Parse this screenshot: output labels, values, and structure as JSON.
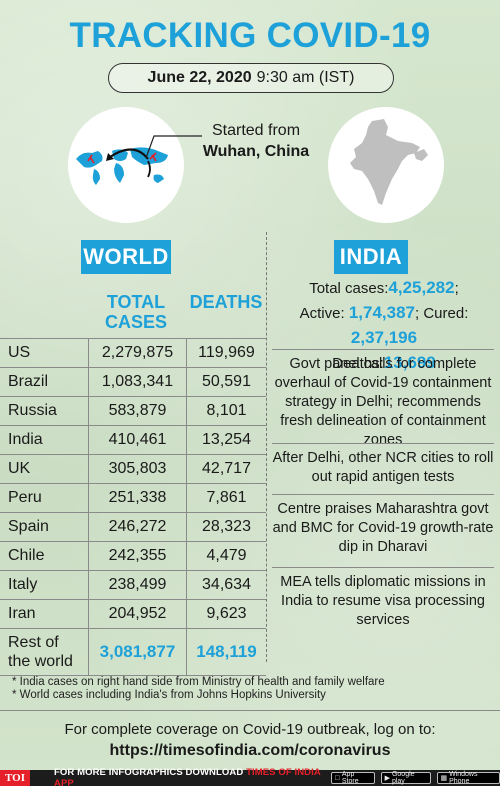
{
  "title": "TRACKING COVID-19",
  "date": {
    "day": "June 22, 2020",
    "time": "9:30 am (IST)"
  },
  "origin": {
    "line1": "Started from",
    "city": "Wuhan, China"
  },
  "world": {
    "label": "WORLD",
    "columns": {
      "cases": "TOTAL CASES",
      "deaths": "DEATHS"
    },
    "rows": [
      {
        "country": "US",
        "cases": "2,279,875",
        "deaths": "119,969"
      },
      {
        "country": "Brazil",
        "cases": "1,083,341",
        "deaths": "50,591"
      },
      {
        "country": "Russia",
        "cases": "583,879",
        "deaths": "8,101"
      },
      {
        "country": "India",
        "cases": "410,461",
        "deaths": "13,254"
      },
      {
        "country": "UK",
        "cases": "305,803",
        "deaths": "42,717"
      },
      {
        "country": "Peru",
        "cases": "251,338",
        "deaths": "7,861"
      },
      {
        "country": "Spain",
        "cases": "246,272",
        "deaths": "28,323"
      },
      {
        "country": "Chile",
        "cases": "242,355",
        "deaths": "4,479"
      },
      {
        "country": "Italy",
        "cases": "238,499",
        "deaths": "34,634"
      },
      {
        "country": "Iran",
        "cases": "204,952",
        "deaths": "9,623"
      }
    ],
    "rest": {
      "country_line1": "Rest of",
      "country_line2": "the world",
      "cases": "3,081,877",
      "deaths": "148,119"
    }
  },
  "india": {
    "label": "INDIA",
    "total_label": "Total cases:",
    "total": "4,25,282",
    "active_label": "Active:",
    "active": "1,74,387",
    "cured_label": "; Cured:",
    "cured": "2,37,196",
    "deaths_label": "Deaths:",
    "deaths": "13,699",
    "news": [
      "Govt panel calls for complete overhaul of Covid-19 containment strategy in Delhi; recommends fresh delineation of containment zones",
      "After Delhi, other NCR cities to roll out rapid antigen tests",
      "Centre praises Maharashtra govt and BMC for Covid-19 growth-rate dip in Dharavi",
      "MEA tells diplomatic missions in India to resume visa processing services"
    ]
  },
  "footnotes": [
    "* India cases on right hand side from Ministry of health and family welfare",
    "* World cases including India's from Johns Hopkins University"
  ],
  "coverage": {
    "text": "For complete coverage on Covid-19 outbreak, log on to:",
    "url": "https://timesofindia.com/coronavirus"
  },
  "bottom_bar": {
    "logo": "TOI",
    "text": "FOR MORE  INFOGRAPHICS DOWNLOAD",
    "app": "TIMES OF INDIA  APP",
    "stores": [
      "App Store",
      "Google play",
      "Windows Phone"
    ]
  },
  "colors": {
    "accent": "#1da1d8",
    "background": "#cfe1c8",
    "toi_red": "#e5202a"
  },
  "icons": [
    "world-map-icon",
    "india-map-icon",
    "spread-arrow-icon",
    "apple-icon",
    "google-play-icon",
    "windows-icon"
  ]
}
